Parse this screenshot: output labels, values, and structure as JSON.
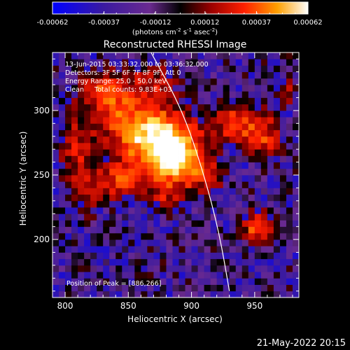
{
  "chart_data": {
    "type": "heatmap",
    "title": "Reconstructed RHESSI Image",
    "xlabel": "Heliocentric X (arcsec)",
    "ylabel": "Heliocentric Y (arcsec)",
    "xlim": [
      790,
      985
    ],
    "ylim": [
      155,
      345
    ],
    "x_ticks": [
      800,
      850,
      900,
      950
    ],
    "y_ticks": [
      200,
      250,
      300
    ],
    "colorbar": {
      "label_text": "(photons cm",
      "label_sup1": "-2",
      "label_mid": " s",
      "label_sup2": "-1",
      "label_mid2": " asec",
      "label_sup3": "-2",
      "label_end": ")",
      "ticks": [
        -0.00062,
        -0.00037,
        -0.00012,
        0.00012,
        0.00037,
        0.00062
      ],
      "tick_labels": [
        "-0.00062",
        "-0.00037",
        "-0.00012",
        "0.00012",
        "0.00037",
        "0.00062"
      ],
      "range": [
        -0.00062,
        0.00062
      ]
    },
    "annotations": {
      "time_range": "13-Jun-2015 03:33:32.000 to 03:36:32.000",
      "detectors": "Detectors: 3F 5F 6F 7F 8F 9F, Att 0",
      "energy": "Energy Range: 25.0 - 50.0 keV",
      "clean": "Clean     Total counts: 9.83E+03",
      "peak": "Position of Peak = [886,266]"
    },
    "peak_position": [
      886,
      266
    ],
    "sources": [
      {
        "x": 858,
        "y": 285,
        "rx": 30,
        "ry": 28,
        "value": 0.00045
      },
      {
        "x": 886,
        "y": 266,
        "rx": 24,
        "ry": 26,
        "value": 0.00062
      },
      {
        "x": 830,
        "y": 315,
        "rx": 22,
        "ry": 18,
        "value": 0.0003
      },
      {
        "x": 808,
        "y": 270,
        "rx": 14,
        "ry": 28,
        "value": 0.00025
      },
      {
        "x": 845,
        "y": 245,
        "rx": 18,
        "ry": 14,
        "value": 0.00028
      },
      {
        "x": 820,
        "y": 235,
        "rx": 14,
        "ry": 20,
        "value": 0.0002
      },
      {
        "x": 935,
        "y": 290,
        "rx": 18,
        "ry": 16,
        "value": 0.00035
      },
      {
        "x": 958,
        "y": 280,
        "rx": 14,
        "ry": 20,
        "value": 0.0003
      },
      {
        "x": 953,
        "y": 210,
        "rx": 12,
        "ry": 12,
        "value": 0.00042
      },
      {
        "x": 915,
        "y": 248,
        "rx": 14,
        "ry": 12,
        "value": 0.0002
      },
      {
        "x": 870,
        "y": 325,
        "rx": 20,
        "ry": 15,
        "value": 0.00018
      },
      {
        "x": 975,
        "y": 315,
        "rx": 10,
        "ry": 14,
        "value": 0.00022
      },
      {
        "x": 880,
        "y": 230,
        "rx": 14,
        "ry": 12,
        "value": 0.00015
      }
    ],
    "limb": {
      "points": [
        [
          868,
          345
        ],
        [
          893,
          300
        ],
        [
          910,
          250
        ],
        [
          922,
          205
        ],
        [
          930,
          160
        ]
      ]
    },
    "colors": {
      "colormap": [
        "#0000ff",
        "#2a1aa8",
        "#5a2ca0",
        "#7a2a8c",
        "#000000",
        "#7a0000",
        "#ff0000",
        "#ff8000",
        "#ffc040",
        "#ffffff"
      ],
      "limb": "#ffffff",
      "axes": "#ffffff"
    }
  },
  "footer": {
    "date_label": "21-May-2022 20:15"
  }
}
